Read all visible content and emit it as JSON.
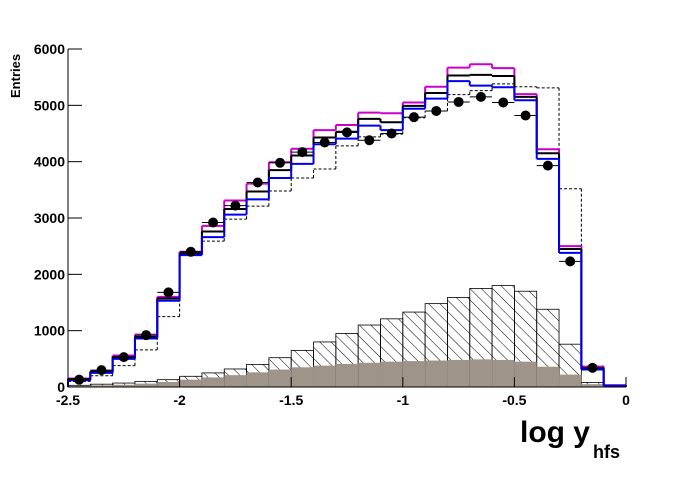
{
  "chart_data": {
    "type": "histogram",
    "y_label": "Entries",
    "x_label": "log y",
    "x_label_sub": "hfs",
    "bins": [
      -2.5,
      -2.4,
      -2.3,
      -2.2,
      -2.1,
      -2.0,
      -1.9,
      -1.8,
      -1.7,
      -1.6,
      -1.5,
      -1.4,
      -1.3,
      -1.2,
      -1.1,
      -1.0,
      -0.9,
      -0.8,
      -0.7,
      -0.6,
      -0.5,
      -0.4,
      -0.3,
      -0.2,
      -0.1,
      0
    ],
    "xlim": [
      -2.5,
      0
    ],
    "ylim": [
      0,
      6000
    ],
    "xticks": [
      -2.5,
      -2,
      -1.5,
      -1,
      -0.5,
      0
    ],
    "yticks": [
      0,
      1000,
      2000,
      3000,
      4000,
      5000,
      6000
    ],
    "series": [
      {
        "style": "filled-hatched",
        "color": "#000000",
        "values": [
          30,
          50,
          70,
          100,
          130,
          190,
          250,
          320,
          400,
          520,
          650,
          800,
          950,
          1100,
          1210,
          1330,
          1480,
          1590,
          1750,
          1800,
          1700,
          1380,
          760,
          80,
          0
        ]
      },
      {
        "style": "filled",
        "color": "#9e948a",
        "values": [
          20,
          30,
          40,
          60,
          90,
          130,
          170,
          210,
          260,
          310,
          350,
          380,
          410,
          430,
          450,
          460,
          470,
          480,
          490,
          480,
          450,
          360,
          220,
          50,
          0
        ]
      },
      {
        "style": "dashed",
        "color": "#000000",
        "values": [
          100,
          200,
          380,
          660,
          1250,
          2360,
          2590,
          2980,
          3210,
          3480,
          3710,
          3870,
          4280,
          4440,
          4490,
          4780,
          4900,
          5190,
          5260,
          5380,
          5330,
          5310,
          3520,
          370,
          25
        ]
      },
      {
        "style": "step",
        "color": "#cc00cc",
        "values": [
          150,
          280,
          560,
          930,
          1600,
          2400,
          2860,
          3310,
          3610,
          3990,
          4230,
          4560,
          4650,
          4870,
          4860,
          5050,
          5330,
          5670,
          5730,
          5660,
          5200,
          4220,
          2500,
          360,
          30
        ]
      },
      {
        "style": "step",
        "color": "#000000",
        "values": [
          140,
          270,
          530,
          890,
          1570,
          2370,
          2760,
          3160,
          3470,
          3850,
          4110,
          4430,
          4530,
          4760,
          4700,
          4990,
          5220,
          5530,
          5540,
          5520,
          5150,
          4150,
          2450,
          330,
          25
        ]
      },
      {
        "style": "step",
        "color": "#0000ee",
        "values": [
          120,
          250,
          500,
          860,
          1530,
          2340,
          2660,
          3060,
          3330,
          3710,
          3960,
          4310,
          4410,
          4640,
          4560,
          4940,
          5120,
          5430,
          5350,
          5320,
          5090,
          4050,
          2380,
          310,
          20
        ]
      },
      {
        "style": "points",
        "color": "#000000",
        "values": [
          130,
          300,
          530,
          920,
          1680,
          2400,
          2920,
          3220,
          3630,
          3980,
          4170,
          4340,
          4520,
          4380,
          4500,
          4790,
          4900,
          5060,
          5150,
          5050,
          4820,
          3930,
          2230,
          340,
          null
        ]
      }
    ]
  }
}
